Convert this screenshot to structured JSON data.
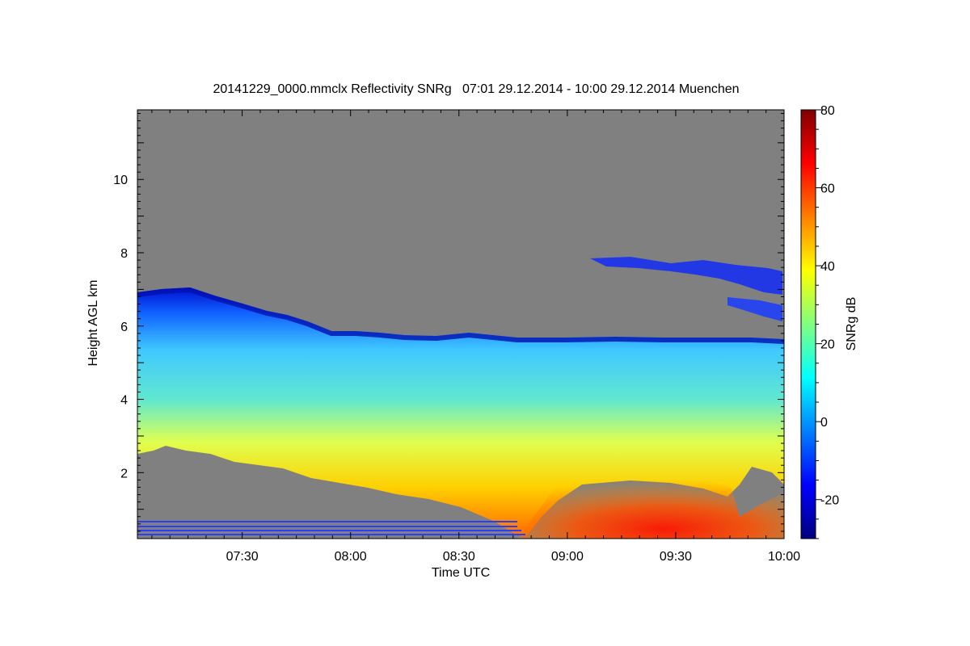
{
  "chart_data": {
    "type": "heatmap",
    "title": "20141229_0000.mmclx Reflectivity SNRg   07:01 29.12.2014 - 10:00 29.12.2014 Muenchen",
    "xlabel": "Time UTC",
    "ylabel": "Height AGL km",
    "colorbar_label": "SNRg dB",
    "x_range": [
      "07:01",
      "10:00"
    ],
    "y_range": [
      0.2,
      11.9
    ],
    "x_ticks": [
      "07:30",
      "08:00",
      "08:30",
      "09:00",
      "09:30",
      "10:00"
    ],
    "y_ticks": [
      "2",
      "4",
      "6",
      "8",
      "10"
    ],
    "colorbar_range": [
      -30,
      80
    ],
    "colorbar_ticks": [
      "-20",
      "0",
      "20",
      "40",
      "60",
      "80"
    ],
    "colormap": "jet",
    "no_signal_color": "#808080",
    "grid": false,
    "features": [
      {
        "name": "cloud top",
        "height_km_start": 6.8,
        "height_km_end": 5.6
      },
      {
        "name": "cloud base",
        "height_km_start": 2.6,
        "height_km_end": 0.2
      },
      {
        "name": "strongest echo",
        "time_range": [
          "09:00",
          "10:00"
        ],
        "height_km": [
          0.2,
          2.0
        ],
        "snr_db": 55
      }
    ]
  }
}
